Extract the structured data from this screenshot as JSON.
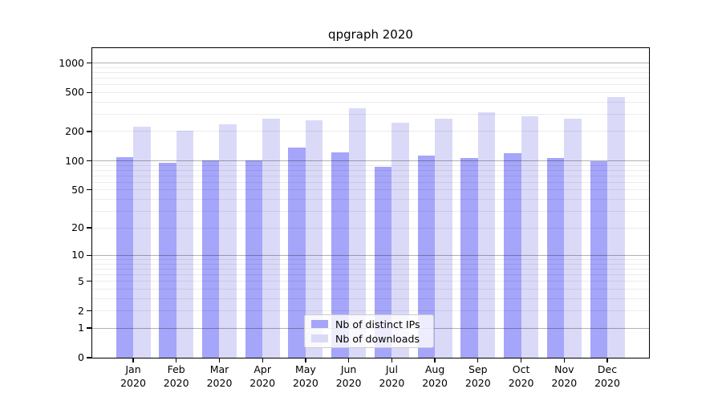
{
  "figure": {
    "background": "#ffffff"
  },
  "chart_data": {
    "type": "bar",
    "title": "qpgraph 2020",
    "categories": [
      "Jan 2020",
      "Feb 2020",
      "Mar 2020",
      "Apr 2020",
      "May 2020",
      "Jun 2020",
      "Jul 2020",
      "Aug 2020",
      "Sep 2020",
      "Oct 2020",
      "Nov 2020",
      "Dec 2020"
    ],
    "series": [
      {
        "name": "Nb of distinct IPs",
        "color": "#a5a5fa",
        "values": [
          110,
          96,
          101,
          101,
          137,
          123,
          86,
          113,
          107,
          120,
          107,
          100
        ]
      },
      {
        "name": "Nb of downloads",
        "color": "#dadaf8",
        "values": [
          222,
          204,
          235,
          270,
          258,
          345,
          245,
          272,
          314,
          285,
          268,
          451
        ]
      }
    ],
    "xlabel": "",
    "ylabel": "",
    "yscale": "log1p",
    "ylim": [
      0,
      1415
    ],
    "yticks": [
      1000,
      500,
      200,
      100,
      50,
      20,
      10,
      5,
      2,
      1,
      0
    ],
    "ytick_labels": [
      "1000",
      "500",
      "200",
      "100",
      "50",
      "20",
      "10",
      "5",
      "2",
      "1",
      "0"
    ],
    "grid": true,
    "gridlines_major_at": [
      1,
      10,
      100,
      1000
    ],
    "legend_position": "lower center"
  }
}
